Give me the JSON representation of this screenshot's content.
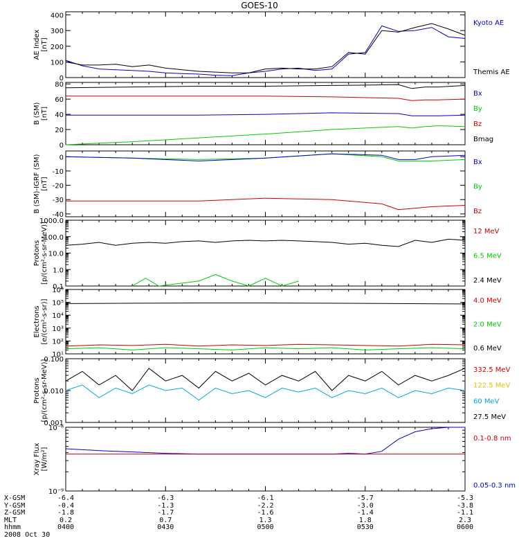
{
  "chart_data": {
    "title": "GOES-10",
    "date_label": "2008 Oct 30",
    "type": "line",
    "colors": {
      "black": "#000000",
      "red": "#cc0000",
      "green": "#00cc00",
      "blue": "#0000cc",
      "yellow": "#e6c200",
      "cyan": "#00a8e0"
    },
    "time_ticks": [
      "0400",
      "0430",
      "0500",
      "0530",
      "0600"
    ],
    "footer_rows": [
      {
        "label": "X-GSM",
        "values": [
          "-6.4",
          "-6.3",
          "-6.1",
          "-5.7",
          "-5.3"
        ]
      },
      {
        "label": "Y-GSM",
        "values": [
          "-0.4",
          "-1.3",
          "-2.2",
          "-3.0",
          "-3.8"
        ]
      },
      {
        "label": "Z-GSM",
        "values": [
          "-1.8",
          "-1.7",
          "-1.6",
          "-1.4",
          "-1.1"
        ]
      },
      {
        "label": "MLT",
        "values": [
          "0.2",
          "0.7",
          "1.3",
          "1.8",
          "2.3"
        ]
      },
      {
        "label": "hhmm",
        "values": [
          "0400",
          "0430",
          "0500",
          "0530",
          "0600"
        ]
      }
    ],
    "panels": [
      {
        "id": "ae",
        "ylabel": [
          "AE Index",
          "[nT]"
        ],
        "scale": "linear",
        "ylim": [
          0,
          420
        ],
        "ticks": [
          {
            "v": 0,
            "t": "0"
          },
          {
            "v": 100,
            "t": "100"
          },
          {
            "v": 200,
            "t": "200"
          },
          {
            "v": 300,
            "t": "300"
          },
          {
            "v": 400,
            "t": "400"
          }
        ],
        "series": [
          {
            "name": "Kyoto AE",
            "color": "blue",
            "t": [
              0,
              5,
              10,
              15,
              20,
              25,
              30,
              35,
              40,
              45,
              50,
              55,
              60,
              65,
              70,
              75,
              80,
              85,
              90,
              95,
              100,
              105,
              110,
              115,
              120
            ],
            "v": [
              110,
              75,
              55,
              50,
              45,
              40,
              30,
              25,
              22,
              15,
              12,
              30,
              40,
              55,
              60,
              45,
              55,
              150,
              160,
              330,
              295,
              300,
              320,
              260,
              250
            ]
          },
          {
            "name": "Themis AE",
            "color": "black",
            "t": [
              0,
              5,
              10,
              15,
              20,
              25,
              30,
              35,
              40,
              45,
              50,
              55,
              60,
              65,
              70,
              75,
              80,
              85,
              90,
              95,
              100,
              105,
              110,
              115,
              120
            ],
            "v": [
              100,
              80,
              80,
              85,
              70,
              80,
              60,
              50,
              40,
              35,
              30,
              30,
              55,
              60,
              55,
              55,
              70,
              160,
              150,
              300,
              290,
              320,
              345,
              310,
              270
            ]
          }
        ],
        "legend": [
          {
            "text": "Kyoto AE",
            "color": "blue"
          },
          {
            "text": "Themis AE",
            "color": "black"
          }
        ]
      },
      {
        "id": "b",
        "ylabel": [
          "B (SM)",
          "[nT]"
        ],
        "scale": "linear",
        "ylim": [
          0,
          82
        ],
        "ticks": [
          {
            "v": 0,
            "t": "0"
          },
          {
            "v": 20,
            "t": "20"
          },
          {
            "v": 40,
            "t": "40"
          },
          {
            "v": 60,
            "t": "60"
          },
          {
            "v": 80,
            "t": "80"
          }
        ],
        "series": [
          {
            "name": "Bmag",
            "color": "black",
            "t": [
              0,
              20,
              40,
              60,
              80,
              100,
              104,
              108,
              112,
              120
            ],
            "v": [
              75,
              76,
              77,
              77,
              78,
              79,
              74,
              76,
              76,
              78
            ]
          },
          {
            "name": "Bz",
            "color": "red",
            "t": [
              0,
              20,
              40,
              60,
              80,
              100,
              104,
              108,
              112,
              120
            ],
            "v": [
              64,
              64,
              64,
              64,
              63,
              61,
              58,
              59,
              59,
              60
            ]
          },
          {
            "name": "Bx",
            "color": "blue",
            "t": [
              0,
              20,
              40,
              60,
              80,
              100,
              104,
              108,
              112,
              120
            ],
            "v": [
              39,
              39,
              39,
              40,
              42,
              41,
              38,
              38,
              38,
              39
            ]
          },
          {
            "name": "By",
            "color": "green",
            "t": [
              0,
              20,
              40,
              60,
              80,
              100,
              104,
              108,
              112,
              120
            ],
            "v": [
              0,
              4,
              9,
              14,
              20,
              24,
              22,
              24,
              25,
              24
            ]
          }
        ],
        "legend": [
          {
            "text": "Bx",
            "color": "blue"
          },
          {
            "text": "By",
            "color": "green"
          },
          {
            "text": "Bz",
            "color": "red"
          },
          {
            "text": "Bmag",
            "color": "black"
          }
        ]
      },
      {
        "id": "dbrf",
        "ylabel": [
          "B (SM)-IGRF (SM)",
          "[nT]"
        ],
        "scale": "linear",
        "ylim": [
          -42,
          4
        ],
        "ticks": [
          {
            "v": 0,
            "t": "0"
          },
          {
            "v": -10,
            "t": "-10"
          },
          {
            "v": -20,
            "t": "-20"
          },
          {
            "v": -30,
            "t": "-30"
          },
          {
            "v": -40,
            "t": "-40"
          }
        ],
        "series": [
          {
            "name": "By",
            "color": "green",
            "t": [
              0,
              20,
              40,
              60,
              80,
              95,
              100,
              105,
              110,
              120
            ],
            "v": [
              0,
              -1,
              -2,
              -1,
              2,
              0,
              -3,
              -3,
              -3,
              -2
            ]
          },
          {
            "name": "Bx",
            "color": "blue",
            "t": [
              0,
              20,
              40,
              60,
              80,
              95,
              100,
              105,
              110,
              120
            ],
            "v": [
              0,
              -1,
              -3,
              -1,
              2,
              1,
              -2,
              -2,
              0,
              1
            ]
          },
          {
            "name": "Bz",
            "color": "red",
            "t": [
              0,
              20,
              40,
              60,
              80,
              95,
              100,
              105,
              110,
              120
            ],
            "v": [
              -31,
              -31,
              -31,
              -29,
              -30,
              -33,
              -37,
              -36,
              -35,
              -34
            ]
          }
        ],
        "legend": [
          {
            "text": "Bx",
            "color": "blue"
          },
          {
            "text": "By",
            "color": "green"
          },
          {
            "text": "Bz",
            "color": "red"
          }
        ]
      },
      {
        "id": "protons_hi",
        "ylabel": [
          "Protons",
          "[p/(cm²-s-sr-MeV)]"
        ],
        "scale": "log",
        "ylim": [
          0.1,
          1000
        ],
        "ticks": [
          {
            "v": 1000,
            "t": "1000.0"
          },
          {
            "v": 100,
            "t": "100.0"
          },
          {
            "v": 10,
            "t": "10.0"
          },
          {
            "v": 1,
            "t": "1.0"
          },
          {
            "v": 0.1,
            "t": "0.1"
          }
        ],
        "series": [
          {
            "name": "2.4 MeV",
            "color": "black",
            "t": [
              0,
              5,
              10,
              15,
              20,
              25,
              30,
              35,
              40,
              45,
              50,
              55,
              60,
              65,
              70,
              75,
              80,
              85,
              90,
              95,
              100,
              105,
              110,
              115,
              120
            ],
            "v": [
              30,
              35,
              45,
              30,
              40,
              45,
              40,
              50,
              55,
              45,
              55,
              60,
              55,
              60,
              55,
              50,
              45,
              35,
              40,
              30,
              25,
              60,
              45,
              70,
              60
            ]
          },
          {
            "name": "6.5 MeV",
            "color": "green",
            "t": [
              20,
              24,
              28,
              40,
              45,
              50,
              55,
              60,
              65,
              70
            ],
            "v": [
              0.1,
              0.3,
              0.1,
              0.2,
              0.5,
              0.2,
              0.1,
              0.3,
              0.1,
              0.2
            ]
          }
        ],
        "legend": [
          {
            "text": "12 MeV",
            "color": "red"
          },
          {
            "text": "6.5 MeV",
            "color": "green"
          },
          {
            "text": "2.4 MeV",
            "color": "black"
          }
        ]
      },
      {
        "id": "electrons",
        "ylabel": [
          "Electrons",
          "[e/(cm²-s-sr)]"
        ],
        "scale": "log",
        "ylim": [
          10,
          1000000
        ],
        "ticks": [
          {
            "v": 1000000,
            "t": "10⁶"
          },
          {
            "v": 100000,
            "t": "10⁵"
          },
          {
            "v": 10000,
            "t": "10⁴"
          },
          {
            "v": 1000,
            "t": "10³"
          },
          {
            "v": 100,
            "t": "10²"
          },
          {
            "v": 10,
            "t": "10¹"
          }
        ],
        "series": [
          {
            "name": "0.6 MeV",
            "color": "black",
            "t": [
              0,
              20,
              40,
              60,
              80,
              100,
              120
            ],
            "v": [
              80000,
              85000,
              90000,
              90000,
              85000,
              80000,
              75000
            ]
          },
          {
            "name": "4.0 MeV",
            "color": "red",
            "t": [
              0,
              10,
              20,
              30,
              40,
              50,
              60,
              70,
              80,
              90,
              100,
              110,
              120
            ],
            "v": [
              40,
              50,
              45,
              55,
              40,
              50,
              45,
              55,
              50,
              45,
              40,
              55,
              50
            ]
          },
          {
            "name": "2.0 MeV",
            "color": "green",
            "t": [
              0,
              10,
              20,
              30,
              40,
              50,
              60,
              70,
              80,
              90,
              100,
              110,
              120
            ],
            "v": [
              25,
              30,
              20,
              30,
              25,
              20,
              30,
              25,
              30,
              20,
              25,
              30,
              25
            ]
          }
        ],
        "legend": [
          {
            "text": "4.0 MeV",
            "color": "red"
          },
          {
            "text": "2.0 MeV",
            "color": "green"
          },
          {
            "text": "0.6 MeV",
            "color": "black"
          }
        ]
      },
      {
        "id": "protons_lo",
        "ylabel": [
          "Protons",
          "[p/(cm²-s-sr-MeV)]"
        ],
        "scale": "log",
        "ylim": [
          0.001,
          0.1
        ],
        "ticks": [
          {
            "v": 0.1,
            "t": "0.100"
          },
          {
            "v": 0.01,
            "t": "0.010"
          },
          {
            "v": 0.001,
            "t": "0.001"
          }
        ],
        "series": [
          {
            "name": "27.5 MeV",
            "color": "black",
            "t": [
              0,
              5,
              10,
              15,
              20,
              25,
              30,
              35,
              40,
              45,
              50,
              55,
              60,
              65,
              70,
              75,
              80,
              85,
              90,
              95,
              100,
              105,
              110,
              115,
              120
            ],
            "v": [
              0.02,
              0.04,
              0.015,
              0.03,
              0.01,
              0.05,
              0.02,
              0.03,
              0.012,
              0.04,
              0.02,
              0.035,
              0.015,
              0.03,
              0.02,
              0.04,
              0.01,
              0.03,
              0.02,
              0.04,
              0.015,
              0.03,
              0.02,
              0.03,
              0.05
            ]
          },
          {
            "name": "60 MeV",
            "color": "cyan",
            "t": [
              0,
              5,
              10,
              15,
              20,
              25,
              30,
              35,
              40,
              45,
              50,
              55,
              60,
              65,
              70,
              75,
              80,
              85,
              90,
              95,
              100,
              105,
              110,
              115,
              120
            ],
            "v": [
              0.01,
              0.015,
              0.006,
              0.012,
              0.008,
              0.015,
              0.01,
              0.012,
              0.005,
              0.012,
              0.008,
              0.01,
              0.006,
              0.012,
              0.009,
              0.012,
              0.006,
              0.01,
              0.008,
              0.012,
              0.006,
              0.01,
              0.008,
              0.012,
              0.01
            ]
          }
        ],
        "legend": [
          {
            "text": "332.5 MeV",
            "color": "red"
          },
          {
            "text": "122.5 MeV",
            "color": "yellow"
          },
          {
            "text": "60 MeV",
            "color": "cyan"
          },
          {
            "text": "27.5 MeV",
            "color": "black"
          }
        ]
      },
      {
        "id": "xray",
        "ylabel": [
          "Xray Flux",
          "[W/m²]"
        ],
        "scale": "log",
        "ylim": [
          1e-09,
          1e-08
        ],
        "ticks": [
          {
            "v": 1e-08,
            "t": "10⁻⁸"
          },
          {
            "v": 1e-09,
            "t": "10⁻⁹"
          }
        ],
        "series": [
          {
            "name": "0.05-0.3 nm",
            "color": "blue",
            "t": [
              0,
              10,
              20,
              30,
              40,
              50,
              60,
              70,
              80,
              85,
              90,
              95,
              100,
              105,
              110,
              115,
              120
            ],
            "v": [
              4.6e-09,
              4.3e-09,
              4.1e-09,
              3.9e-09,
              3.8e-09,
              3.8e-09,
              3.8e-09,
              3.8e-09,
              3.8e-09,
              3.9e-09,
              3.8e-09,
              4.2e-09,
              6.5e-09,
              8.5e-09,
              9.5e-09,
              1e-08,
              1e-08
            ]
          },
          {
            "name": "0.1-0.8 nm",
            "color": "red",
            "t": [
              0,
              120
            ],
            "v": [
              3.8e-09,
              3.8e-09
            ]
          }
        ],
        "legend": [
          {
            "text": "0.1-0.8 nm",
            "color": "red"
          },
          {
            "text": "0.05-0.3 nm",
            "color": "blue"
          }
        ]
      }
    ]
  }
}
